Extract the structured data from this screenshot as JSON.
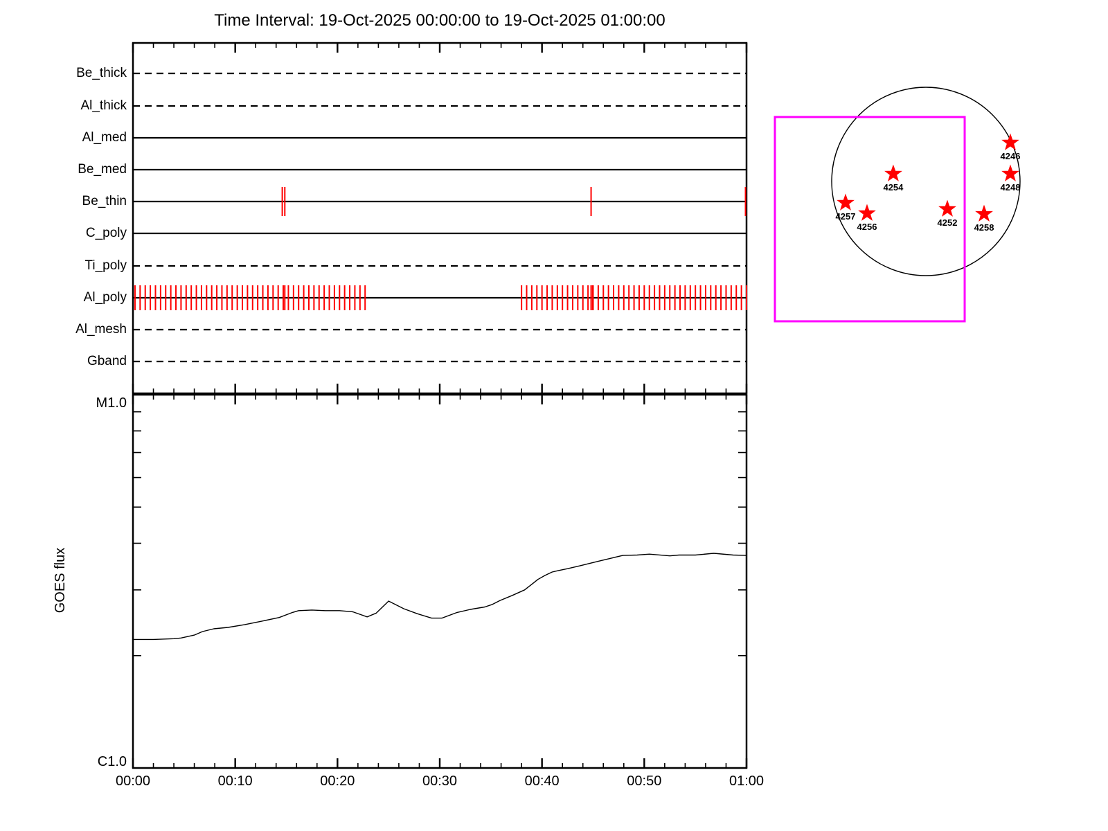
{
  "title": "Time Interval: 19-Oct-2025 00:00:00 to 19-Oct-2025 01:00:00",
  "colors": {
    "background": "#ffffff",
    "axis_line": "#000000",
    "event_red": "#ff0000",
    "fov_magenta": "#ff00ff"
  },
  "chart_data": [
    {
      "id": "filter-timeline",
      "type": "timeline",
      "x_range_minutes": [
        0,
        60
      ],
      "x_major_tick_minutes": 10,
      "x_minor_tick_minutes": 2,
      "rows": [
        {
          "label": "Be_thick",
          "line_style": "dashed",
          "events": []
        },
        {
          "label": "Al_thick",
          "line_style": "dashed",
          "events": []
        },
        {
          "label": "Al_med",
          "line_style": "solid",
          "events": []
        },
        {
          "label": "Be_med",
          "line_style": "solid",
          "events": []
        },
        {
          "label": "Be_thin",
          "line_style": "solid",
          "events": [
            14.6,
            14.85,
            44.8,
            59.9
          ]
        },
        {
          "label": "C_poly",
          "line_style": "solid",
          "events": []
        },
        {
          "label": "Ti_poly",
          "line_style": "dashed",
          "events": []
        },
        {
          "label": "Al_poly",
          "line_style": "solid",
          "events": [
            14.7,
            14.85,
            44.8,
            44.95
          ],
          "event_groups": [
            {
              "start_min": 0.2,
              "end_min": 22.7,
              "step_min": 0.5
            },
            {
              "start_min": 38.0,
              "end_min": 60.0,
              "step_min": 0.5
            }
          ]
        },
        {
          "label": "Al_mesh",
          "line_style": "dashed",
          "events": []
        },
        {
          "label": "Gband",
          "line_style": "dashed",
          "events": []
        }
      ]
    },
    {
      "id": "goes-flux",
      "type": "line",
      "ylabel": "GOES flux",
      "y_scale": "log",
      "y_range_wm2": [
        1e-06,
        1e-05
      ],
      "y_top_label": "M1.0",
      "y_bottom_label": "C1.0",
      "y_minor_ticks_1e6": [
        2,
        3,
        4,
        5,
        6,
        7,
        8,
        9
      ],
      "x_tick_labels": [
        "00:00",
        "00:10",
        "00:20",
        "00:30",
        "00:40",
        "00:50",
        "01:00"
      ],
      "series": [
        {
          "name": "GOES flux",
          "points_min_flux1e6": [
            [
              0,
              2.21
            ],
            [
              2,
              2.21
            ],
            [
              4,
              2.22
            ],
            [
              4.7,
              2.23
            ],
            [
              6,
              2.27
            ],
            [
              6.8,
              2.32
            ],
            [
              7.9,
              2.36
            ],
            [
              9.3,
              2.38
            ],
            [
              10.9,
              2.42
            ],
            [
              12.5,
              2.47
            ],
            [
              14.3,
              2.53
            ],
            [
              15.6,
              2.61
            ],
            [
              16.2,
              2.64
            ],
            [
              17.5,
              2.65
            ],
            [
              18.8,
              2.64
            ],
            [
              20.2,
              2.64
            ],
            [
              21.5,
              2.62
            ],
            [
              22.9,
              2.54
            ],
            [
              23.8,
              2.6
            ],
            [
              25,
              2.8
            ],
            [
              26.5,
              2.67
            ],
            [
              27.8,
              2.59
            ],
            [
              29.2,
              2.52
            ],
            [
              30.2,
              2.52
            ],
            [
              31.7,
              2.61
            ],
            [
              33,
              2.66
            ],
            [
              34.4,
              2.7
            ],
            [
              35.1,
              2.74
            ],
            [
              35.9,
              2.81
            ],
            [
              37.1,
              2.9
            ],
            [
              38.3,
              3.0
            ],
            [
              38.9,
              3.09
            ],
            [
              39.6,
              3.2
            ],
            [
              40.3,
              3.28
            ],
            [
              41,
              3.35
            ],
            [
              41.6,
              3.38
            ],
            [
              42.5,
              3.42
            ],
            [
              43.7,
              3.48
            ],
            [
              44.8,
              3.54
            ],
            [
              45.7,
              3.59
            ],
            [
              46.8,
              3.65
            ],
            [
              47.9,
              3.71
            ],
            [
              49.3,
              3.72
            ],
            [
              50.5,
              3.74
            ],
            [
              52.5,
              3.7
            ],
            [
              53.4,
              3.72
            ],
            [
              55,
              3.72
            ],
            [
              56.8,
              3.76
            ],
            [
              58.7,
              3.72
            ],
            [
              60,
              3.71
            ]
          ]
        }
      ]
    },
    {
      "id": "solar-disk-map",
      "type": "scatter",
      "marker": "star",
      "marker_color": "#ff0000",
      "active_regions": [
        {
          "label": "4246",
          "x_rsun": 0.897,
          "y_rsun": -0.412
        },
        {
          "label": "4248",
          "x_rsun": 0.897,
          "y_rsun": -0.081
        },
        {
          "label": "4254",
          "x_rsun": -0.346,
          "y_rsun": -0.081
        },
        {
          "label": "4257",
          "x_rsun": -0.853,
          "y_rsun": 0.228
        },
        {
          "label": "4256",
          "x_rsun": -0.625,
          "y_rsun": 0.338
        },
        {
          "label": "4252",
          "x_rsun": 0.228,
          "y_rsun": 0.294
        },
        {
          "label": "4258",
          "x_rsun": 0.618,
          "y_rsun": 0.346
        }
      ],
      "fov_box_rsun": {
        "x": [
          -1.603,
          0.412
        ],
        "y": [
          -0.684,
          1.485
        ]
      }
    }
  ]
}
